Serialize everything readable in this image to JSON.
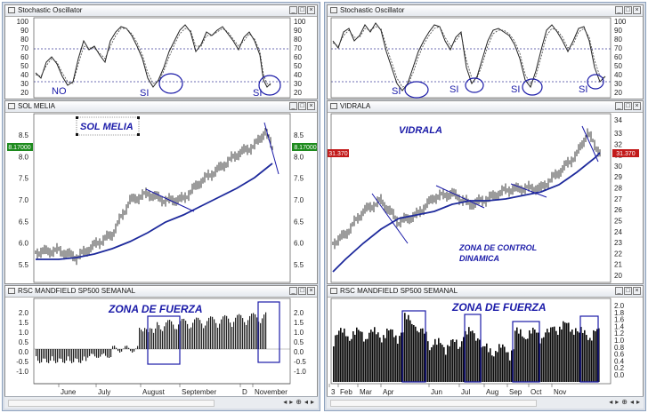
{
  "left": {
    "osc": {
      "title": "Stochastic Oscillator",
      "ticks": [
        "100",
        "90",
        "80",
        "70",
        "60",
        "50",
        "40",
        "30",
        "20"
      ],
      "labels": [
        "NO",
        "SI",
        "SI"
      ]
    },
    "price": {
      "title": "SOL MELIA",
      "name_label": "SOL MELIA",
      "ticks": [
        "8.5",
        "8.0",
        "7.5",
        "7.0",
        "6.5",
        "6.0",
        "5.5"
      ],
      "tag": "8.17000"
    },
    "rsc": {
      "title": "RSC MANDFIELD SP500 SEMANAL",
      "label": "ZONA DE FUERZA",
      "ticks": [
        "2.0",
        "1.5",
        "1.0",
        "0.5",
        "0.0",
        "-0.5",
        "-1.0"
      ],
      "months": [
        "June",
        "July",
        "August",
        "September",
        "D",
        "November"
      ]
    }
  },
  "right": {
    "osc": {
      "title": "Stochastic Oscillator",
      "ticks": [
        "100",
        "90",
        "80",
        "70",
        "60",
        "50",
        "40",
        "30",
        "20"
      ],
      "labels": [
        "SI",
        "SI",
        "SI",
        "SI"
      ]
    },
    "price": {
      "title": "VIDRALA",
      "name_label": "VIDRALA",
      "control_label_1": "ZONA DE CONTROL",
      "control_label_2": "DINAMICA",
      "ticks": [
        "33",
        "32",
        "31",
        "30",
        "29",
        "28",
        "27",
        "26",
        "25",
        "24",
        "23",
        "22",
        "21",
        "20"
      ],
      "top_tick": "34",
      "tag": "31.370"
    },
    "rsc": {
      "title": "RSC MANDFIELD SP500 SEMANAL",
      "label": "ZONA DE FUERZA",
      "ticks": [
        "2.0",
        "1.8",
        "1.6",
        "1.4",
        "1.2",
        "1.0",
        "0.8",
        "0.6",
        "0.4",
        "0.2",
        "0.0"
      ],
      "months": [
        "3",
        "Feb",
        "Mar",
        "Apr",
        "Jun",
        "Jul",
        "Aug",
        "Sep",
        "Oct",
        "Nov"
      ]
    }
  },
  "colors": {
    "accent": "#1a1aa8",
    "ma_line": "#1e2a9c",
    "tag_left": "#1d8a1d",
    "tag_right": "#c21a1a"
  }
}
